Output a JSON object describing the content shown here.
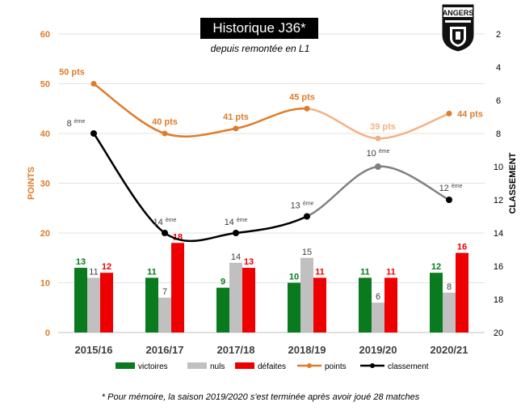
{
  "title": "Historique J36*",
  "subtitle": "depuis remontée en L1",
  "footnote": "*  Pour mémoire, la saison 2019/2020 s'est terminée après avoir joué 28 matches",
  "logo": {
    "text": "ANGERS",
    "icon": "angers-sco-crest"
  },
  "colors": {
    "victoires": "#0a7a1e",
    "nuls": "#c0c0c0",
    "defaites": "#ee0000",
    "points": "#e07b2a",
    "points_light": "#f4b183",
    "classement": "#000000",
    "classement_light": "#808080"
  },
  "chart_data": {
    "type": "bar",
    "categories": [
      "2015/16",
      "2016/17",
      "2017/18",
      "2018/19",
      "2019/20",
      "2020/21"
    ],
    "series": [
      {
        "name": "victoires",
        "type": "bar",
        "values": [
          13,
          11,
          9,
          10,
          11,
          12
        ]
      },
      {
        "name": "nuls",
        "type": "bar",
        "values": [
          11,
          7,
          14,
          15,
          6,
          8
        ]
      },
      {
        "name": "défaites",
        "type": "bar",
        "values": [
          12,
          18,
          13,
          11,
          11,
          16
        ]
      },
      {
        "name": "points",
        "type": "line",
        "axis": "left",
        "values": [
          50,
          40,
          41,
          45,
          39,
          44
        ],
        "labels": [
          "50 pts",
          "40 pts",
          "41 pts",
          "45 pts",
          "39 pts",
          "44 pts"
        ]
      },
      {
        "name": "classement",
        "type": "line",
        "axis": "right",
        "values": [
          8,
          14,
          14,
          13,
          10,
          12
        ],
        "labels": [
          "8",
          "14",
          "14",
          "13",
          "10",
          "12"
        ],
        "label_suffix": "ème"
      }
    ],
    "ylabel": "POINTS",
    "y2label": "CLASSEMENT",
    "ylim": [
      0,
      60
    ],
    "yticks": [
      "0",
      "10",
      "20",
      "30",
      "40",
      "50",
      "60"
    ],
    "y2lim": [
      20,
      2
    ],
    "y2reversed": true,
    "y2ticks": [
      "2",
      "4",
      "6",
      "8",
      "10",
      "12",
      "14",
      "16",
      "18",
      "20"
    ],
    "grid": true,
    "legend": "bottom"
  }
}
